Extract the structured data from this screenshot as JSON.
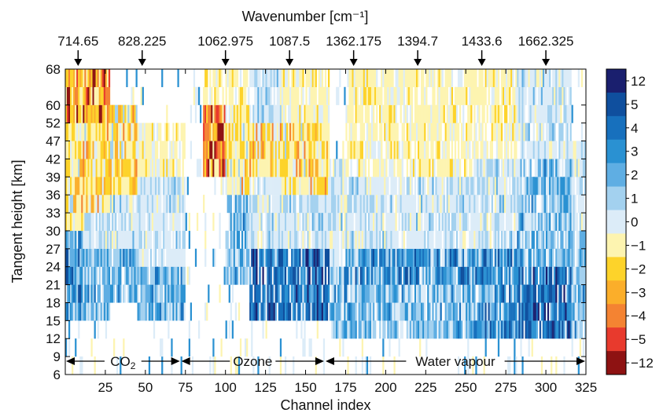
{
  "chart_data": {
    "type": "heatmap",
    "title": "",
    "xlabel": "Channel index",
    "ylabel": "Tangent height [km]",
    "top_axis_label": "Wavenumber [cm⁻¹]",
    "xlim": [
      0,
      325
    ],
    "x_ticks": [
      25,
      50,
      75,
      100,
      125,
      150,
      175,
      200,
      225,
      250,
      275,
      300,
      325
    ],
    "y_ticks": [
      6,
      9,
      12,
      15,
      18,
      21,
      24,
      27,
      30,
      33,
      36,
      39,
      42,
      47,
      52,
      60,
      68
    ],
    "wavenumber_markers": [
      {
        "label": "714.65",
        "channel": 8
      },
      {
        "label": "828.225",
        "channel": 48
      },
      {
        "label": "1062.975",
        "channel": 100
      },
      {
        "label": "1087.5",
        "channel": 140
      },
      {
        "label": "1362.175",
        "channel": 180
      },
      {
        "label": "1394.7",
        "channel": 220
      },
      {
        "label": "1433.6",
        "channel": 260
      },
      {
        "label": "1662.325",
        "channel": 300
      }
    ],
    "regions": [
      {
        "label": "CO2",
        "sub": "2",
        "start": 0,
        "end": 72
      },
      {
        "label": "Ozone",
        "start": 72,
        "end": 162
      },
      {
        "label": "Water vapour",
        "start": 162,
        "end": 325
      }
    ],
    "colorbar": {
      "labels": [
        "12",
        "5",
        "4",
        "3",
        "2",
        "1",
        "0",
        "−1",
        "−2",
        "−3",
        "−4",
        "−5",
        "−12"
      ],
      "colors": [
        "#1a1f6e",
        "#0f4f9e",
        "#1770bd",
        "#2a91d2",
        "#5faee3",
        "#a3d1ef",
        "#dcecf8",
        "#fdf4b0",
        "#fdd32a",
        "#fbae2a",
        "#f48332",
        "#e83a2d",
        "#8e1212"
      ]
    },
    "regime_profiles": [
      {
        "x0": 0,
        "x1": 12,
        "bands": [
          [
            0,
            3,
            "white"
          ],
          [
            3,
            8,
            "blue"
          ],
          [
            8,
            14,
            "warm"
          ],
          [
            14,
            17,
            "hot"
          ]
        ]
      },
      {
        "x0": 12,
        "x1": 28,
        "bands": [
          [
            0,
            3,
            "white"
          ],
          [
            3,
            7,
            "mid"
          ],
          [
            7,
            9,
            "light"
          ],
          [
            9,
            14,
            "warm"
          ],
          [
            14,
            17,
            "hot"
          ]
        ]
      },
      {
        "x0": 28,
        "x1": 45,
        "bands": [
          [
            0,
            4,
            "white"
          ],
          [
            4,
            7,
            "mid"
          ],
          [
            7,
            10,
            "light"
          ],
          [
            10,
            15,
            "warm"
          ],
          [
            15,
            17,
            "white"
          ]
        ]
      },
      {
        "x0": 45,
        "x1": 75,
        "bands": [
          [
            0,
            3,
            "white"
          ],
          [
            3,
            6,
            "mid"
          ],
          [
            6,
            11,
            "light"
          ],
          [
            11,
            14,
            "pale"
          ],
          [
            14,
            17,
            "white"
          ]
        ]
      },
      {
        "x0": 75,
        "x1": 86,
        "bands": [
          [
            0,
            17,
            "white"
          ]
        ]
      },
      {
        "x0": 86,
        "x1": 100,
        "bands": [
          [
            0,
            11,
            "white"
          ],
          [
            11,
            15,
            "hot"
          ],
          [
            15,
            17,
            "pale"
          ]
        ]
      },
      {
        "x0": 100,
        "x1": 115,
        "bands": [
          [
            0,
            5,
            "white"
          ],
          [
            5,
            10,
            "mid"
          ],
          [
            10,
            14,
            "warm"
          ],
          [
            14,
            17,
            "pale"
          ]
        ]
      },
      {
        "x0": 115,
        "x1": 135,
        "bands": [
          [
            0,
            3,
            "white"
          ],
          [
            3,
            7,
            "deep"
          ],
          [
            7,
            11,
            "light"
          ],
          [
            11,
            14,
            "warm"
          ],
          [
            14,
            17,
            "light"
          ]
        ]
      },
      {
        "x0": 135,
        "x1": 165,
        "bands": [
          [
            0,
            3,
            "white"
          ],
          [
            3,
            7,
            "deep"
          ],
          [
            7,
            10,
            "light"
          ],
          [
            10,
            14,
            "warm"
          ],
          [
            14,
            17,
            "pale"
          ]
        ]
      },
      {
        "x0": 165,
        "x1": 175,
        "bands": [
          [
            0,
            2,
            "white"
          ],
          [
            2,
            6,
            "mid"
          ],
          [
            6,
            12,
            "light"
          ],
          [
            12,
            17,
            "white"
          ]
        ]
      },
      {
        "x0": 175,
        "x1": 255,
        "bands": [
          [
            0,
            2,
            "white"
          ],
          [
            2,
            5,
            "mid"
          ],
          [
            5,
            7,
            "blue"
          ],
          [
            7,
            11,
            "light"
          ],
          [
            11,
            17,
            "pale"
          ]
        ]
      },
      {
        "x0": 255,
        "x1": 282,
        "bands": [
          [
            0,
            2,
            "white"
          ],
          [
            2,
            7,
            "blue"
          ],
          [
            7,
            12,
            "light"
          ],
          [
            12,
            17,
            "pale"
          ]
        ]
      },
      {
        "x0": 282,
        "x1": 316,
        "bands": [
          [
            0,
            2,
            "white"
          ],
          [
            2,
            6,
            "deep"
          ],
          [
            6,
            12,
            "mid"
          ],
          [
            12,
            17,
            "light"
          ]
        ]
      },
      {
        "x0": 316,
        "x1": 325,
        "bands": [
          [
            0,
            2,
            "white"
          ],
          [
            2,
            8,
            "mid"
          ],
          [
            8,
            13,
            "light"
          ],
          [
            13,
            17,
            "white"
          ]
        ]
      }
    ]
  }
}
